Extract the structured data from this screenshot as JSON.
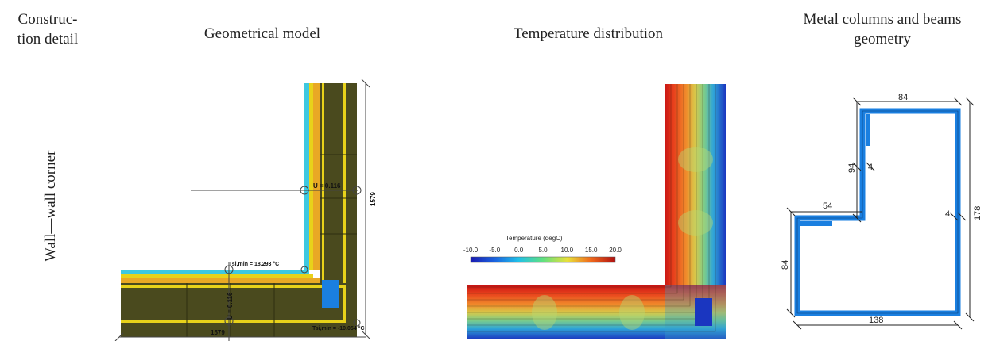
{
  "headers": {
    "construction_detail": "Construc-\ntion detail",
    "geometrical_model": "Geometrical model",
    "temperature_distribution": "Temperature distribution",
    "metal_geometry": "Metal columns and beams\ngeometry"
  },
  "row_label": "Wall—wall corner",
  "geo_model": {
    "u_label_vertical": "U = 0.116",
    "u_label_horizontal": "U = 0.116",
    "tsi_min_inner": "Tsi,min = 18.293 °C",
    "tsi_min_outer": "Tsi,min = -10.054 °C",
    "dim_bottom": "1579",
    "dim_right": "1579"
  },
  "temp_legend": {
    "title": "Temperature (degC)",
    "ticks": [
      "-10.0",
      "-5.0",
      "0.0",
      "5.0",
      "10.0",
      "15.0",
      "20.0"
    ]
  },
  "metal_geometry": {
    "dim_top": "84",
    "dim_94": "94",
    "dim_4a": "4",
    "dim_54": "54",
    "dim_4b": "4",
    "dim_178": "178",
    "dim_84_left": "84",
    "dim_138": "138"
  },
  "colors": {
    "insulation": "#4a4a1e",
    "yellow": "#e8d21a",
    "orange": "#e9a825",
    "cyan": "#3ec8e0",
    "steel_blue": "#1a7fe0"
  }
}
